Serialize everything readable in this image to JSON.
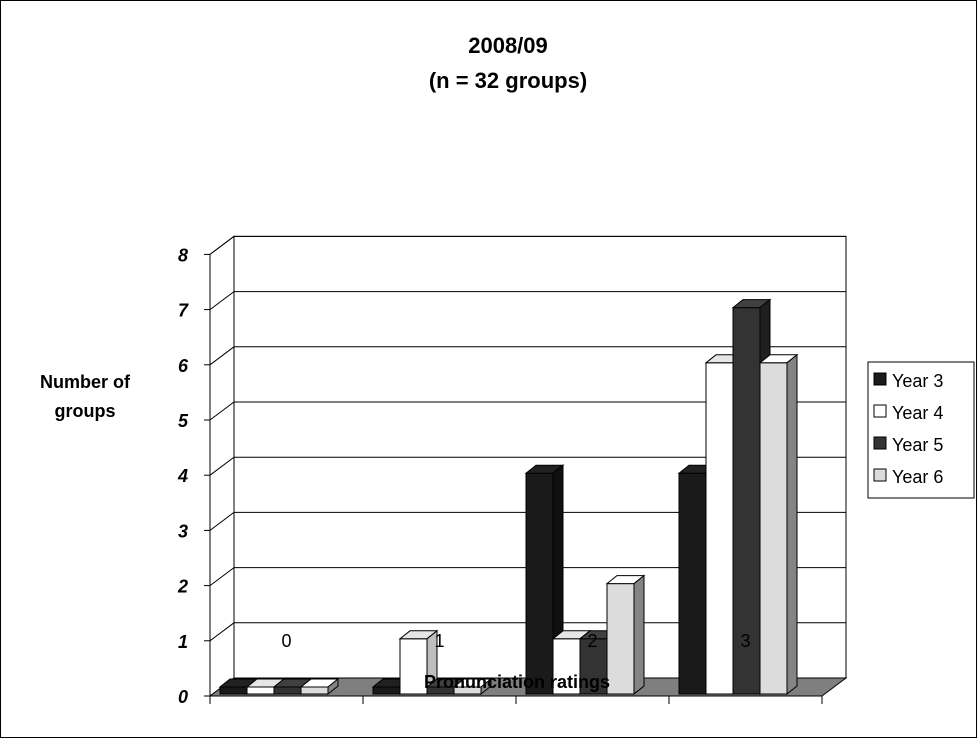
{
  "chart_data": {
    "type": "bar",
    "title_lines": [
      "2008/09",
      "(n = 32 groups)"
    ],
    "xlabel": "Pronunciation ratings",
    "ylabel_lines": [
      "Number of",
      "groups"
    ],
    "categories": [
      "0",
      "1",
      "2",
      "3"
    ],
    "yticks": [
      "0",
      "1",
      "2",
      "3",
      "4",
      "5",
      "6",
      "7",
      "8"
    ],
    "ylim": [
      0,
      8
    ],
    "grid": true,
    "legend_position": "right",
    "series": [
      {
        "name": "Year 3",
        "values": [
          0,
          0,
          4,
          4
        ],
        "color": "#1a1a1a"
      },
      {
        "name": "Year 4",
        "values": [
          0,
          1,
          1,
          6
        ],
        "color": "#ffffff"
      },
      {
        "name": "Year 5",
        "values": [
          0,
          0,
          1,
          7
        ],
        "color": "#333333"
      },
      {
        "name": "Year 6",
        "values": [
          0,
          0,
          2,
          6
        ],
        "color": "#dcdcdc"
      }
    ]
  },
  "colors": {
    "floor": "#7f7f7f",
    "wall": "#ffffff",
    "gridline": "#000000"
  }
}
